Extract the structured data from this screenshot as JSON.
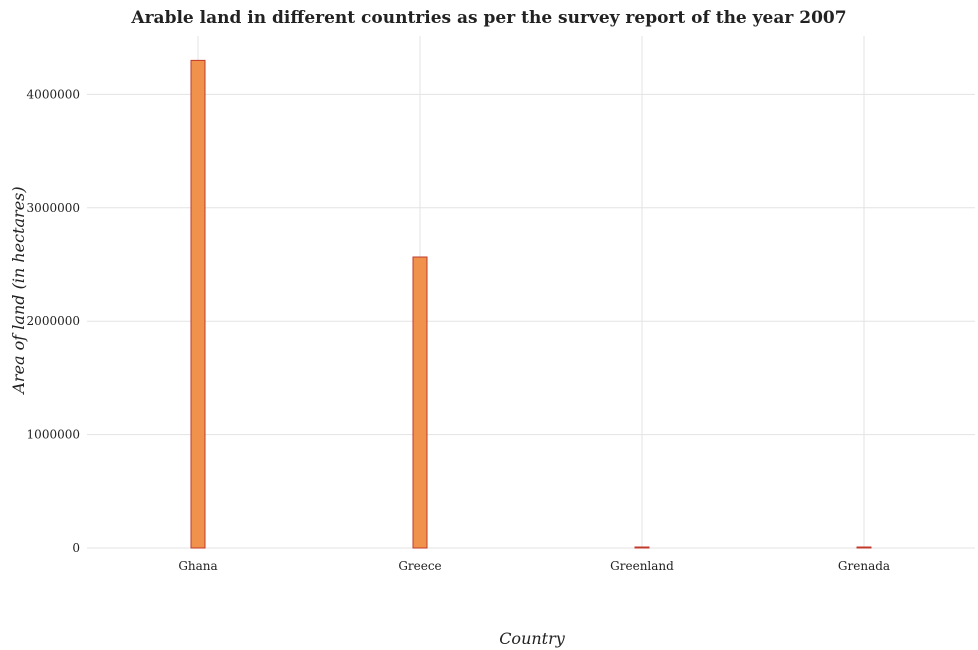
{
  "chart_data": {
    "type": "bar",
    "title": "Arable land in different countries as per the survey report of the year 2007",
    "xlabel": "Country",
    "ylabel": "Area of land (in hectares)",
    "categories": [
      "Ghana",
      "Greece",
      "Greenland",
      "Grenada"
    ],
    "values": [
      4300000,
      2566000,
      900,
      2000
    ],
    "ylim": [
      0,
      4515000
    ],
    "yticks": [
      0,
      1000000,
      2000000,
      3000000,
      4000000
    ],
    "ytick_labels": [
      "0",
      "1000000",
      "2000000",
      "3000000",
      "4000000"
    ],
    "grid": true,
    "bar_color": "#f0924c",
    "bar_edge_color": "#c0392b"
  }
}
